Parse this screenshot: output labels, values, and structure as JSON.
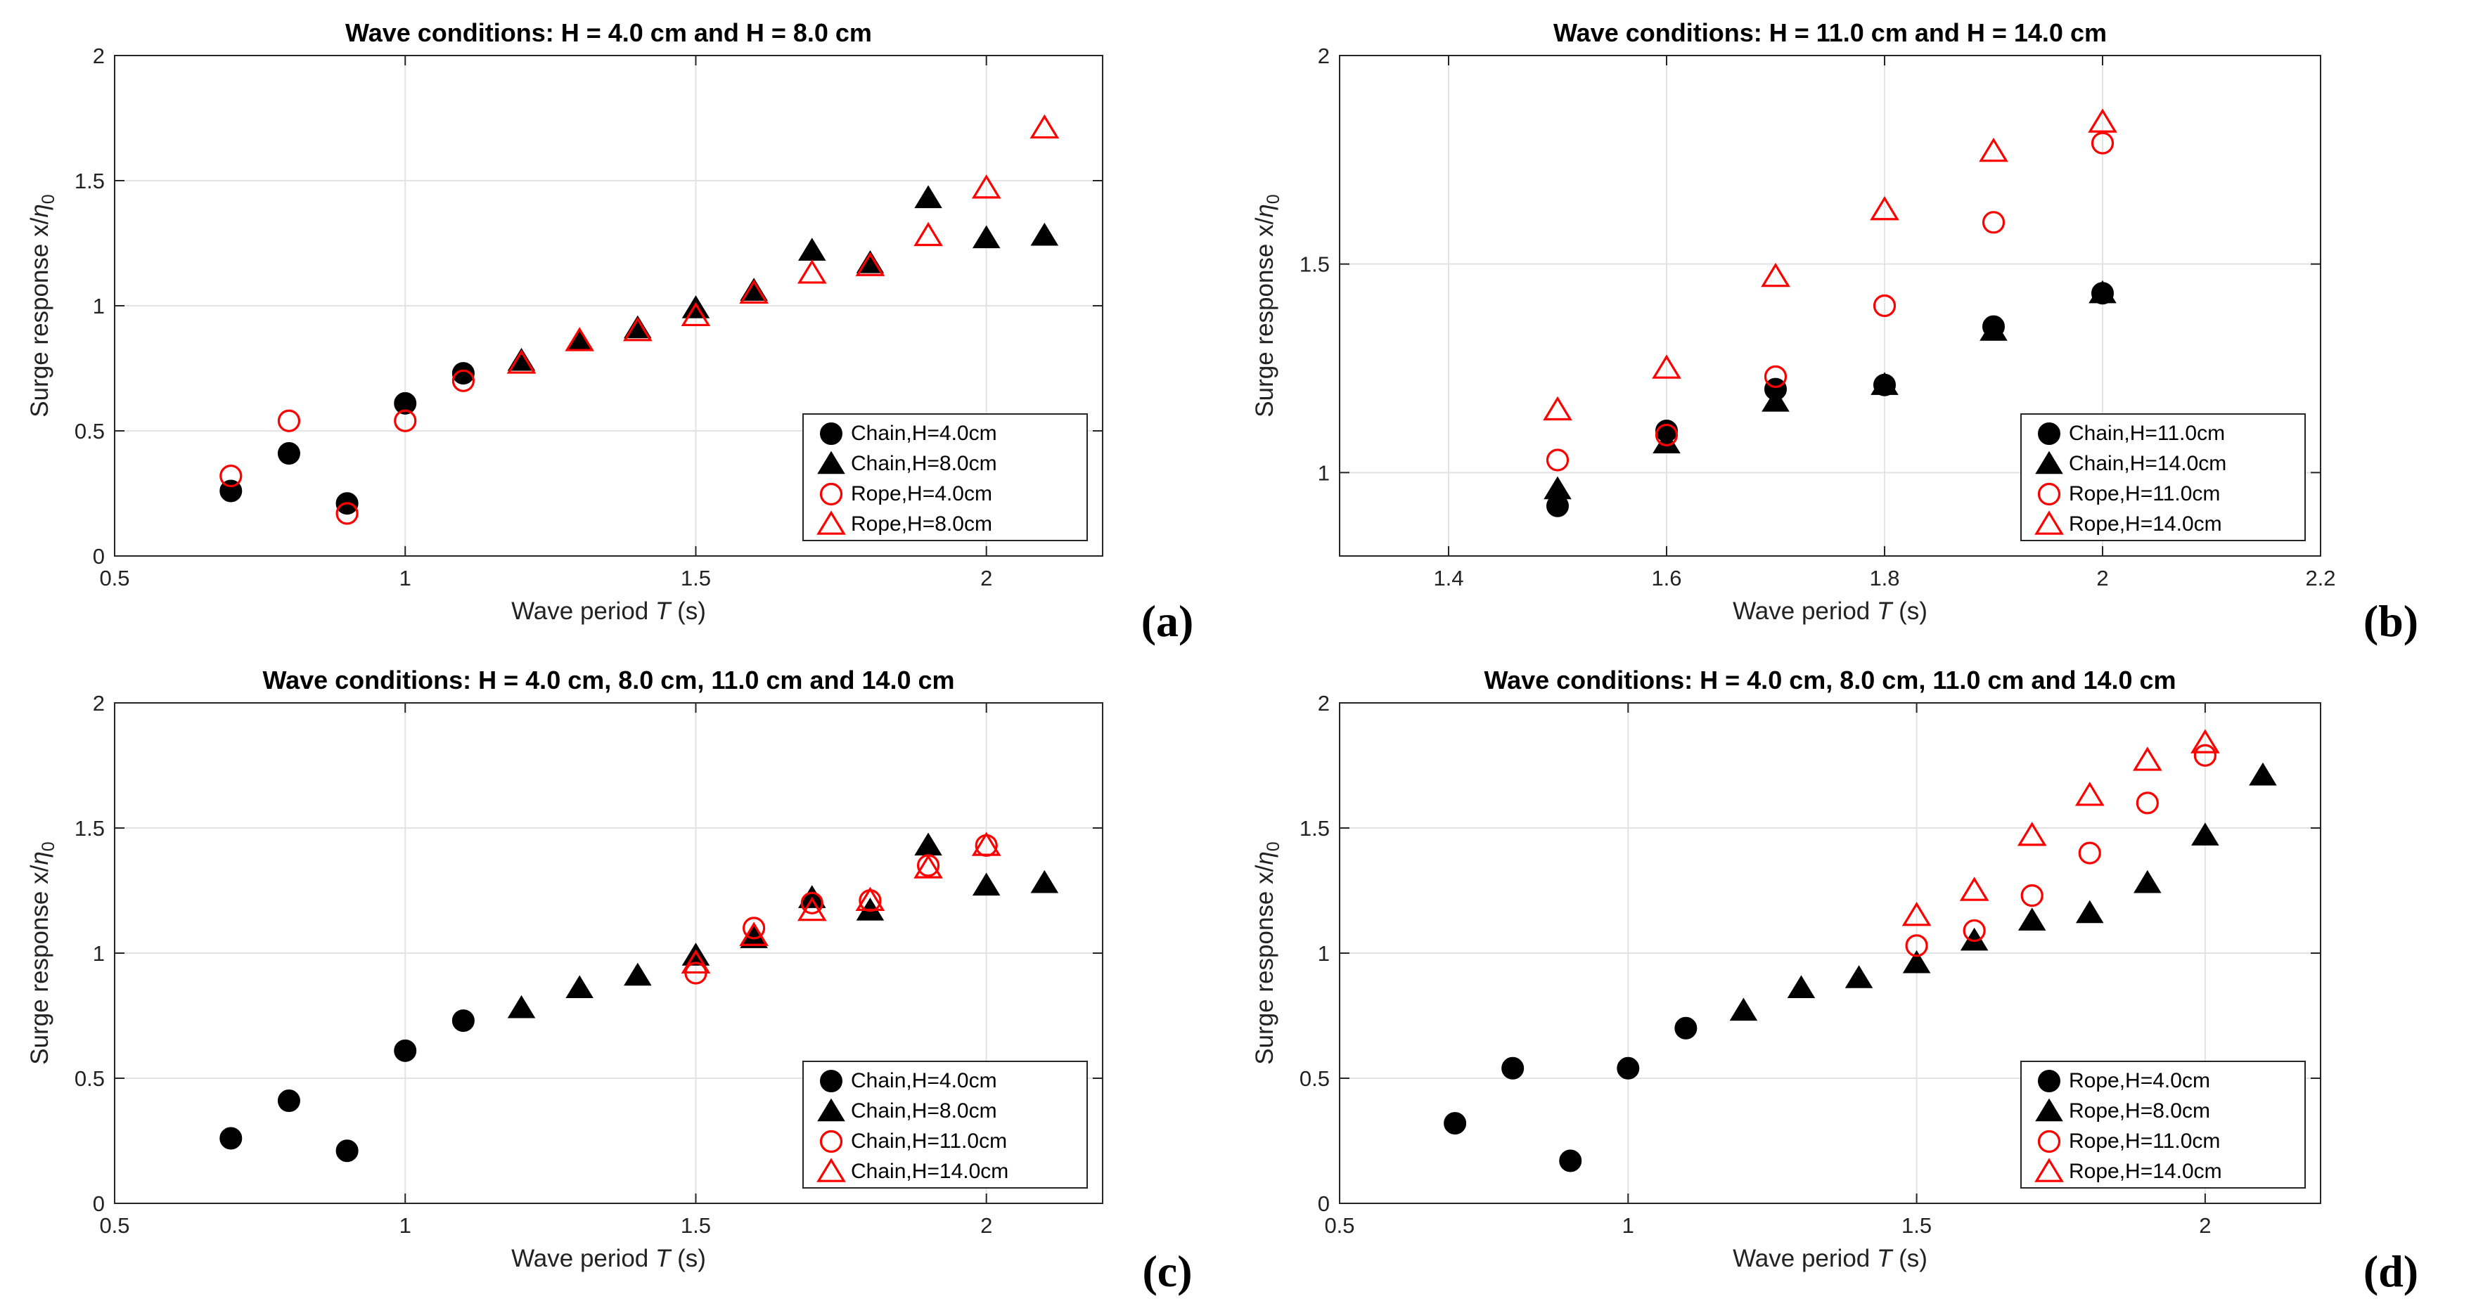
{
  "chart_data": [
    {
      "type": "scatter",
      "panel_label": "(a)",
      "title": "Wave conditions: H = 4.0 cm and H = 8.0 cm",
      "xlabel_prefix": "Wave period ",
      "xlabel_var": "T",
      "xlabel_unit": " (s)",
      "ylabel_main": "Surge response  x/",
      "ylabel_sym": "η",
      "ylabel_sub": "0",
      "xlim": [
        0.5,
        2.2
      ],
      "ylim": [
        0,
        2
      ],
      "xticks": [
        0.5,
        1,
        1.5,
        2
      ],
      "xtick_labels": [
        "0.5",
        "1",
        "1.5",
        "2"
      ],
      "yticks": [
        0,
        0.5,
        1,
        1.5,
        2
      ],
      "ytick_labels": [
        "0",
        "0.5",
        "1",
        "1.5",
        "2"
      ],
      "grid": true,
      "legend_position": "bottom-right",
      "series": [
        {
          "name": "Chain,H=4.0cm",
          "marker": "circle",
          "filled": true,
          "color": "#000000",
          "x": [
            0.7,
            0.8,
            0.9,
            1.0,
            1.1
          ],
          "y": [
            0.26,
            0.41,
            0.21,
            0.61,
            0.73
          ]
        },
        {
          "name": "Chain,H=8.0cm",
          "marker": "triangle",
          "filled": true,
          "color": "#000000",
          "x": [
            1.2,
            1.3,
            1.4,
            1.5,
            1.6,
            1.7,
            1.8,
            1.9,
            2.0,
            2.1
          ],
          "y": [
            0.78,
            0.86,
            0.91,
            0.99,
            1.06,
            1.22,
            1.17,
            1.43,
            1.27,
            1.28
          ]
        },
        {
          "name": "Rope,H=4.0cm",
          "marker": "circle",
          "filled": false,
          "color": "#ff0000",
          "x": [
            0.7,
            0.8,
            0.9,
            1.0,
            1.1
          ],
          "y": [
            0.32,
            0.54,
            0.17,
            0.54,
            0.7
          ]
        },
        {
          "name": "Rope,H=8.0cm",
          "marker": "triangle",
          "filled": false,
          "color": "#ff0000",
          "x": [
            1.2,
            1.3,
            1.4,
            1.5,
            1.6,
            1.7,
            1.8,
            1.9,
            2.0,
            2.1
          ],
          "y": [
            0.77,
            0.86,
            0.9,
            0.96,
            1.05,
            1.13,
            1.16,
            1.28,
            1.47,
            1.71
          ]
        }
      ]
    },
    {
      "type": "scatter",
      "panel_label": "(b)",
      "title": "Wave conditions: H = 11.0 cm and H = 14.0 cm",
      "xlabel_prefix": "Wave period ",
      "xlabel_var": "T",
      "xlabel_unit": " (s)",
      "ylabel_main": "Surge response  x/",
      "ylabel_sym": "η",
      "ylabel_sub": "0",
      "xlim": [
        1.3,
        2.2
      ],
      "ylim": [
        0.8,
        2
      ],
      "xticks": [
        1.4,
        1.6,
        1.8,
        2,
        2.2
      ],
      "xtick_labels": [
        "1.4",
        "1.6",
        "1.8",
        "2",
        "2.2"
      ],
      "yticks": [
        1,
        1.5,
        2
      ],
      "ytick_labels": [
        "1",
        "1.5",
        "2"
      ],
      "grid": true,
      "legend_position": "bottom-right",
      "series": [
        {
          "name": "Chain,H=11.0cm",
          "marker": "circle",
          "filled": true,
          "color": "#000000",
          "x": [
            1.5,
            1.6,
            1.7,
            1.8,
            1.9,
            2.0
          ],
          "y": [
            0.92,
            1.1,
            1.2,
            1.21,
            1.35,
            1.43
          ]
        },
        {
          "name": "Chain,H=14.0cm",
          "marker": "triangle",
          "filled": true,
          "color": "#000000",
          "x": [
            1.5,
            1.6,
            1.7,
            1.8,
            1.9,
            2.0
          ],
          "y": [
            0.96,
            1.07,
            1.17,
            1.21,
            1.34,
            1.43
          ]
        },
        {
          "name": "Rope,H=11.0cm",
          "marker": "circle",
          "filled": false,
          "color": "#ff0000",
          "x": [
            1.5,
            1.6,
            1.7,
            1.8,
            1.9,
            2.0
          ],
          "y": [
            1.03,
            1.09,
            1.23,
            1.4,
            1.6,
            1.79
          ]
        },
        {
          "name": "Rope,H=14.0cm",
          "marker": "triangle",
          "filled": false,
          "color": "#ff0000",
          "x": [
            1.5,
            1.6,
            1.7,
            1.8,
            1.9,
            2.0
          ],
          "y": [
            1.15,
            1.25,
            1.47,
            1.63,
            1.77,
            1.84
          ]
        }
      ]
    },
    {
      "type": "scatter",
      "panel_label": "(c)",
      "title": "Wave conditions: H = 4.0 cm, 8.0 cm, 11.0 cm and 14.0 cm",
      "xlabel_prefix": "Wave period ",
      "xlabel_var": "T",
      "xlabel_unit": " (s)",
      "ylabel_main": "Surge response  x/",
      "ylabel_sym": "η",
      "ylabel_sub": "0",
      "xlim": [
        0.5,
        2.2
      ],
      "ylim": [
        0,
        2
      ],
      "xticks": [
        0.5,
        1,
        1.5,
        2
      ],
      "xtick_labels": [
        "0.5",
        "1",
        "1.5",
        "2"
      ],
      "yticks": [
        0,
        0.5,
        1,
        1.5,
        2
      ],
      "ytick_labels": [
        "0",
        "0.5",
        "1",
        "1.5",
        "2"
      ],
      "grid": true,
      "legend_position": "bottom-right",
      "series": [
        {
          "name": "Chain,H=4.0cm",
          "marker": "circle",
          "filled": true,
          "color": "#000000",
          "x": [
            0.7,
            0.8,
            0.9,
            1.0,
            1.1
          ],
          "y": [
            0.26,
            0.41,
            0.21,
            0.61,
            0.73
          ]
        },
        {
          "name": "Chain,H=8.0cm",
          "marker": "triangle",
          "filled": true,
          "color": "#000000",
          "x": [
            1.2,
            1.3,
            1.4,
            1.5,
            1.6,
            1.7,
            1.8,
            1.9,
            2.0,
            2.1
          ],
          "y": [
            0.78,
            0.86,
            0.91,
            0.99,
            1.06,
            1.22,
            1.17,
            1.43,
            1.27,
            1.28
          ]
        },
        {
          "name": "Chain,H=11.0cm",
          "marker": "circle",
          "filled": false,
          "color": "#ff0000",
          "x": [
            1.5,
            1.6,
            1.7,
            1.8,
            1.9,
            2.0
          ],
          "y": [
            0.92,
            1.1,
            1.2,
            1.21,
            1.35,
            1.43
          ]
        },
        {
          "name": "Chain,H=14.0cm",
          "marker": "triangle",
          "filled": false,
          "color": "#ff0000",
          "x": [
            1.5,
            1.6,
            1.7,
            1.8,
            1.9,
            2.0
          ],
          "y": [
            0.96,
            1.07,
            1.17,
            1.21,
            1.34,
            1.43
          ]
        }
      ]
    },
    {
      "type": "scatter",
      "panel_label": "(d)",
      "title": "Wave conditions: H = 4.0 cm, 8.0 cm, 11.0 cm and 14.0 cm",
      "xlabel_prefix": "Wave period ",
      "xlabel_var": "T",
      "xlabel_unit": " (s)",
      "ylabel_main": "Surge response  x/",
      "ylabel_sym": "η",
      "ylabel_sub": "0",
      "xlim": [
        0.5,
        2.2
      ],
      "ylim": [
        0,
        2
      ],
      "xticks": [
        0.5,
        1,
        1.5,
        2
      ],
      "xtick_labels": [
        "0.5",
        "1",
        "1.5",
        "2"
      ],
      "yticks": [
        0,
        0.5,
        1,
        1.5,
        2
      ],
      "ytick_labels": [
        "0",
        "0.5",
        "1",
        "1.5",
        "2"
      ],
      "grid": true,
      "legend_position": "bottom-right",
      "series": [
        {
          "name": "Rope,H=4.0cm",
          "marker": "circle",
          "filled": true,
          "color": "#000000",
          "x": [
            0.7,
            0.8,
            0.9,
            1.0,
            1.1
          ],
          "y": [
            0.32,
            0.54,
            0.17,
            0.54,
            0.7
          ]
        },
        {
          "name": "Rope,H=8.0cm",
          "marker": "triangle",
          "filled": true,
          "color": "#000000",
          "x": [
            1.2,
            1.3,
            1.4,
            1.5,
            1.6,
            1.7,
            1.8,
            1.9,
            2.0,
            2.1
          ],
          "y": [
            0.77,
            0.86,
            0.9,
            0.96,
            1.05,
            1.13,
            1.16,
            1.28,
            1.47,
            1.71
          ]
        },
        {
          "name": "Rope,H=11.0cm",
          "marker": "circle",
          "filled": false,
          "color": "#ff0000",
          "x": [
            1.5,
            1.6,
            1.7,
            1.8,
            1.9,
            2.0
          ],
          "y": [
            1.03,
            1.09,
            1.23,
            1.4,
            1.6,
            1.79
          ]
        },
        {
          "name": "Rope,H=14.0cm",
          "marker": "triangle",
          "filled": false,
          "color": "#ff0000",
          "x": [
            1.5,
            1.6,
            1.7,
            1.8,
            1.9,
            2.0
          ],
          "y": [
            1.15,
            1.25,
            1.47,
            1.63,
            1.77,
            1.84
          ]
        }
      ]
    }
  ]
}
